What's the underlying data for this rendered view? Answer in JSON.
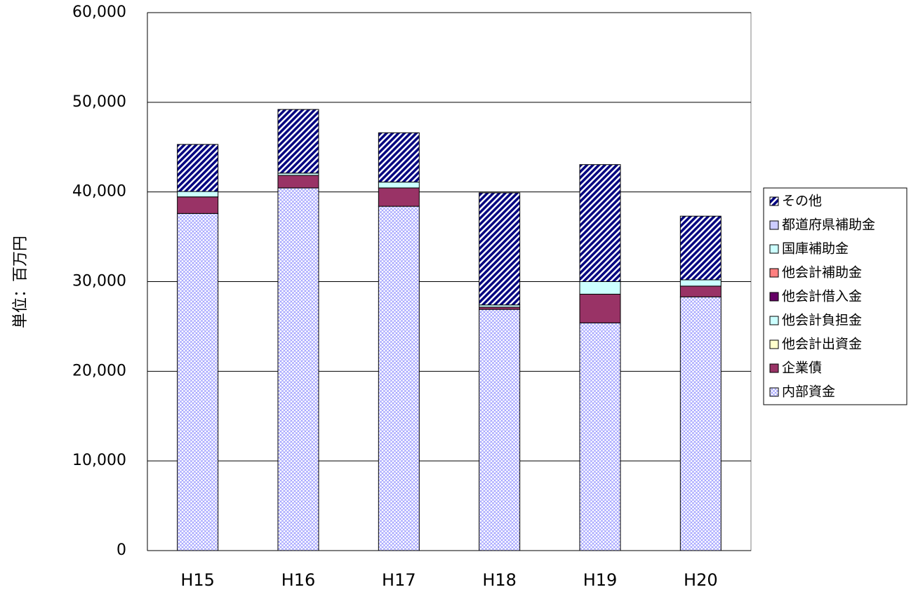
{
  "chart_data": {
    "type": "stacked-bar",
    "y_label": "単位：百万円",
    "categories": [
      "H15",
      "H16",
      "H17",
      "H18",
      "H19",
      "H20"
    ],
    "series": [
      {
        "name": "内部資金",
        "color": "#9999ff",
        "pattern": "crosshatch",
        "values": [
          37600,
          40450,
          38400,
          26900,
          25400,
          28300
        ]
      },
      {
        "name": "企業債",
        "color": "#993366",
        "values": [
          1850,
          1400,
          2050,
          250,
          3200,
          1200
        ]
      },
      {
        "name": "他会計出資金",
        "color": "#ffffcc",
        "values": [
          0,
          0,
          0,
          0,
          0,
          0
        ]
      },
      {
        "name": "他会計負担金",
        "color": "#ccffff",
        "values": [
          600,
          250,
          650,
          250,
          1400,
          700
        ]
      },
      {
        "name": "他会計借入金",
        "color": "#660066",
        "values": [
          0,
          0,
          0,
          0,
          0,
          0
        ]
      },
      {
        "name": "他会計補助金",
        "color": "#ff8080",
        "values": [
          0,
          0,
          0,
          0,
          0,
          0
        ]
      },
      {
        "name": "国庫補助金",
        "color": "#ccffff",
        "values": [
          0,
          0,
          0,
          0,
          0,
          0
        ]
      },
      {
        "name": "都道府県補助金",
        "color": "#ccccff",
        "values": [
          0,
          0,
          0,
          0,
          0,
          0
        ]
      },
      {
        "name": "その他",
        "color": "#000080",
        "pattern": "diagonal",
        "values": [
          5250,
          7100,
          5500,
          12500,
          13050,
          7100
        ]
      }
    ],
    "ylim": [
      0,
      60000
    ],
    "yticks": [
      0,
      {
        "value": 10000,
        "label": "10,000"
      },
      {
        "value": 20000,
        "label": "20,000"
      },
      {
        "value": 30000,
        "label": "30,000"
      },
      {
        "value": 40000,
        "label": "40,000"
      },
      {
        "value": 50000,
        "label": "50,000"
      },
      {
        "value": 60000,
        "label": "60,000"
      }
    ],
    "grid": true,
    "legend": "right"
  }
}
